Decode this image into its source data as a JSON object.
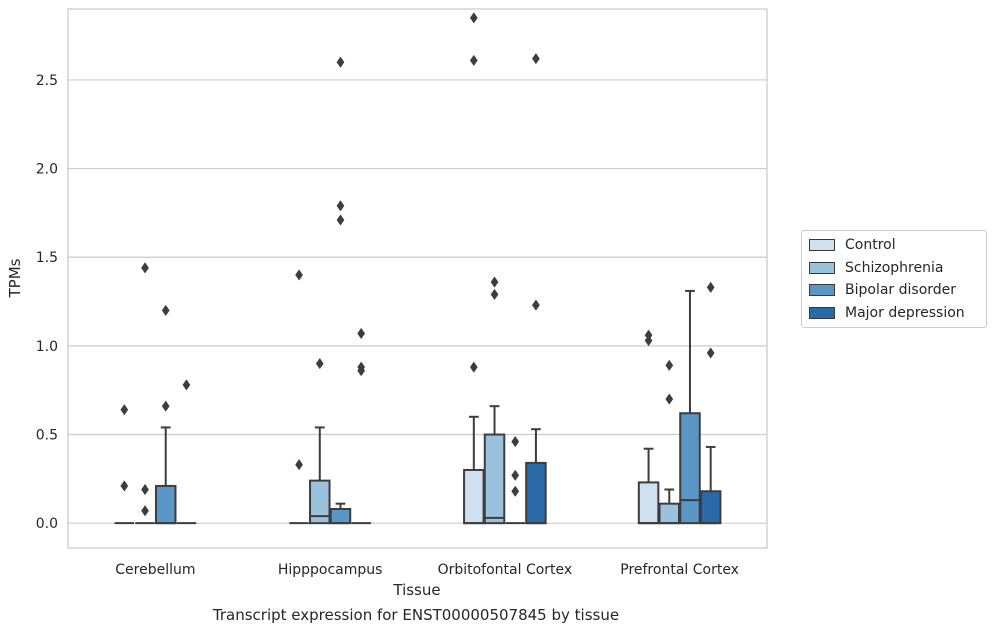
{
  "chart_data": {
    "type": "boxplot",
    "xlabel": "Tissue",
    "ylabel": "TPMs",
    "caption": "Transcript expression for ENST00000507845 by tissue",
    "ylim": [
      -0.14,
      2.9
    ],
    "yticks": [
      "0.0",
      "0.5",
      "1.0",
      "1.5",
      "2.0",
      "2.5"
    ],
    "grid": "horizontal",
    "legend_placement": "right",
    "categories": [
      "Cerebellum",
      "Hipppocampus",
      "Orbitofontal Cortex",
      "Prefrontal Cortex"
    ],
    "series": [
      {
        "name": "Control",
        "color": "#cfe1f1",
        "boxes": [
          {
            "q1": 0,
            "median": 0,
            "q3": 0,
            "whislo": 0,
            "whishi": 0,
            "fliers": [
              0.64,
              0.21
            ]
          },
          {
            "q1": 0,
            "median": 0,
            "q3": 0,
            "whislo": 0,
            "whishi": 0,
            "fliers": [
              1.4,
              0.33
            ]
          },
          {
            "q1": 0,
            "median": 0,
            "q3": 0.3,
            "whislo": 0,
            "whishi": 0.6,
            "fliers": [
              0.88,
              2.61,
              2.85
            ]
          },
          {
            "q1": 0,
            "median": 0,
            "q3": 0.23,
            "whislo": 0,
            "whishi": 0.42,
            "fliers": [
              1.03,
              1.06
            ]
          }
        ]
      },
      {
        "name": "Schizophrenia",
        "color": "#9ac2dc",
        "boxes": [
          {
            "q1": 0,
            "median": 0,
            "q3": 0,
            "whislo": 0,
            "whishi": 0,
            "fliers": [
              1.44,
              0.19,
              0.07
            ]
          },
          {
            "q1": 0,
            "median": 0.04,
            "q3": 0.24,
            "whislo": 0,
            "whishi": 0.54,
            "fliers": [
              0.9
            ]
          },
          {
            "q1": 0,
            "median": 0.03,
            "q3": 0.5,
            "whislo": 0,
            "whishi": 0.66,
            "fliers": [
              1.29,
              1.36
            ]
          },
          {
            "q1": 0,
            "median": 0,
            "q3": 0.11,
            "whislo": 0,
            "whishi": 0.19,
            "fliers": [
              0.89,
              0.7
            ]
          }
        ]
      },
      {
        "name": "Bipolar disorder",
        "color": "#5a96c6",
        "boxes": [
          {
            "q1": 0,
            "median": 0,
            "q3": 0.21,
            "whislo": 0,
            "whishi": 0.54,
            "fliers": [
              1.2,
              0.66
            ]
          },
          {
            "q1": 0,
            "median": 0,
            "q3": 0.08,
            "whislo": 0,
            "whishi": 0.11,
            "fliers": [
              2.6,
              1.79,
              1.71
            ]
          },
          {
            "q1": 0,
            "median": 0,
            "q3": 0,
            "whislo": 0,
            "whishi": 0,
            "fliers": [
              0.46,
              0.27,
              0.18
            ]
          },
          {
            "q1": 0,
            "median": 0.13,
            "q3": 0.62,
            "whislo": 0,
            "whishi": 1.31,
            "fliers": []
          }
        ]
      },
      {
        "name": "Major depression",
        "color": "#2b6aa8",
        "boxes": [
          {
            "q1": 0,
            "median": 0,
            "q3": 0,
            "whislo": 0,
            "whishi": 0,
            "fliers": [
              0.78
            ]
          },
          {
            "q1": 0,
            "median": 0,
            "q3": 0,
            "whislo": 0,
            "whishi": 0,
            "fliers": [
              1.07,
              0.88,
              0.86
            ]
          },
          {
            "q1": 0,
            "median": 0,
            "q3": 0.34,
            "whislo": 0,
            "whishi": 0.53,
            "fliers": [
              2.62,
              1.23
            ]
          },
          {
            "q1": 0,
            "median": 0,
            "q3": 0.18,
            "whislo": 0,
            "whishi": 0.43,
            "fliers": [
              1.33,
              0.96
            ]
          }
        ]
      }
    ]
  }
}
